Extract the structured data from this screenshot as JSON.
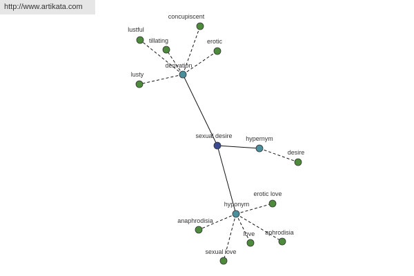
{
  "header": {
    "url": "http://www.artikata.com"
  },
  "nodes": [
    {
      "label": "sexual desire"
    },
    {
      "label": "derivation"
    },
    {
      "label": "hypernym"
    },
    {
      "label": "hyponym"
    },
    {
      "label": "concupiscent"
    },
    {
      "label": "lustful"
    },
    {
      "label": "tillating"
    },
    {
      "label": "erotic"
    },
    {
      "label": "lusty"
    },
    {
      "label": "desire"
    },
    {
      "label": "erotic love"
    },
    {
      "label": "anaphrodisia"
    },
    {
      "label": "love"
    },
    {
      "label": "aphrodisia"
    },
    {
      "label": "sexual love"
    }
  ]
}
